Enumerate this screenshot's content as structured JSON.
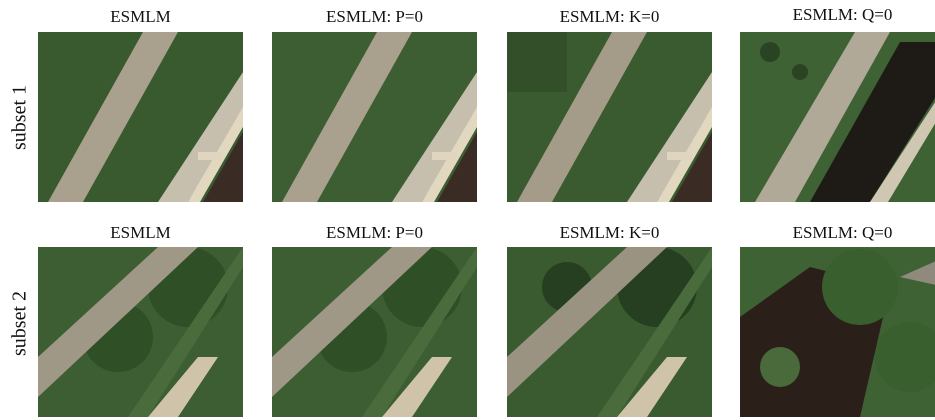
{
  "rows": [
    {
      "label": "subset 1",
      "panels": [
        {
          "title": "ESMLM",
          "image": "aerial-field-diagonal-road-building"
        },
        {
          "title": "ESMLM: P=0",
          "image": "aerial-field-diagonal-road-building"
        },
        {
          "title": "ESMLM: K=0",
          "image": "aerial-field-diagonal-road-building"
        },
        {
          "title": "ESMLM: Q=0",
          "image": "aerial-field-diagonal-road-dark-building"
        }
      ]
    },
    {
      "label": "subset 2",
      "panels": [
        {
          "title": "ESMLM",
          "image": "aerial-trees-diagonal-path"
        },
        {
          "title": "ESMLM: P=0",
          "image": "aerial-trees-diagonal-path"
        },
        {
          "title": "ESMLM: K=0",
          "image": "aerial-trees-diagonal-path"
        },
        {
          "title": "ESMLM: Q=0",
          "image": "aerial-trees-dark-ground"
        }
      ]
    }
  ],
  "colors": {
    "grass": "#3d5e33",
    "grass_dark": "#2a4423",
    "road": "#a9a08e",
    "road_light": "#d8d2bf",
    "building_dark": "#3a2c24",
    "shadow": "#1e1a16"
  }
}
